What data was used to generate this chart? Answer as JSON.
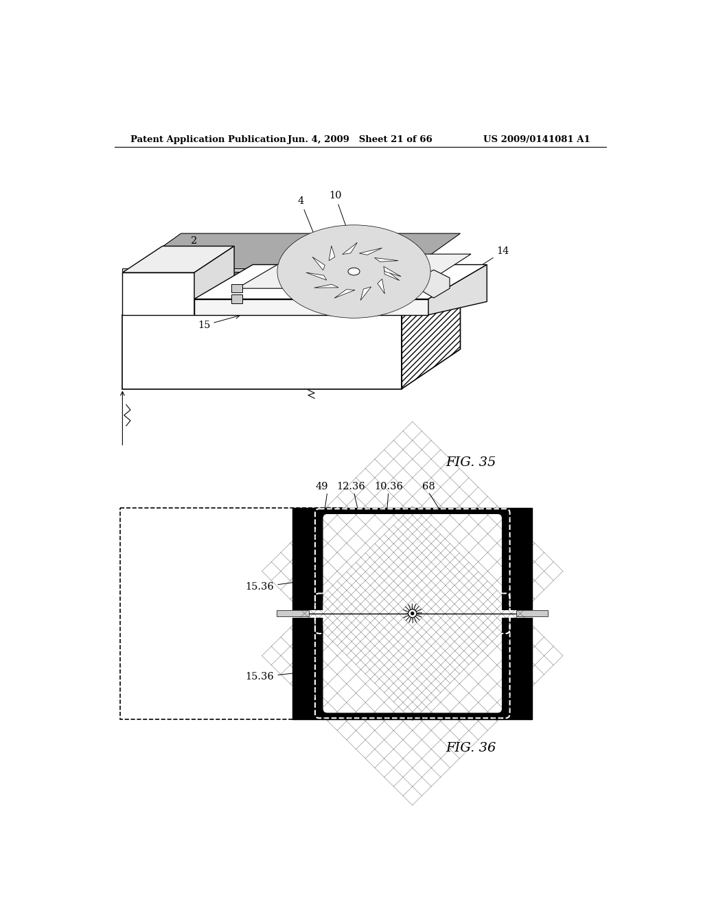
{
  "header_left": "Patent Application Publication",
  "header_mid": "Jun. 4, 2009   Sheet 21 of 66",
  "header_right": "US 2009/0141081 A1",
  "fig35_label": "FIG. 35",
  "fig36_label": "FIG. 36",
  "bg_color": "#ffffff"
}
